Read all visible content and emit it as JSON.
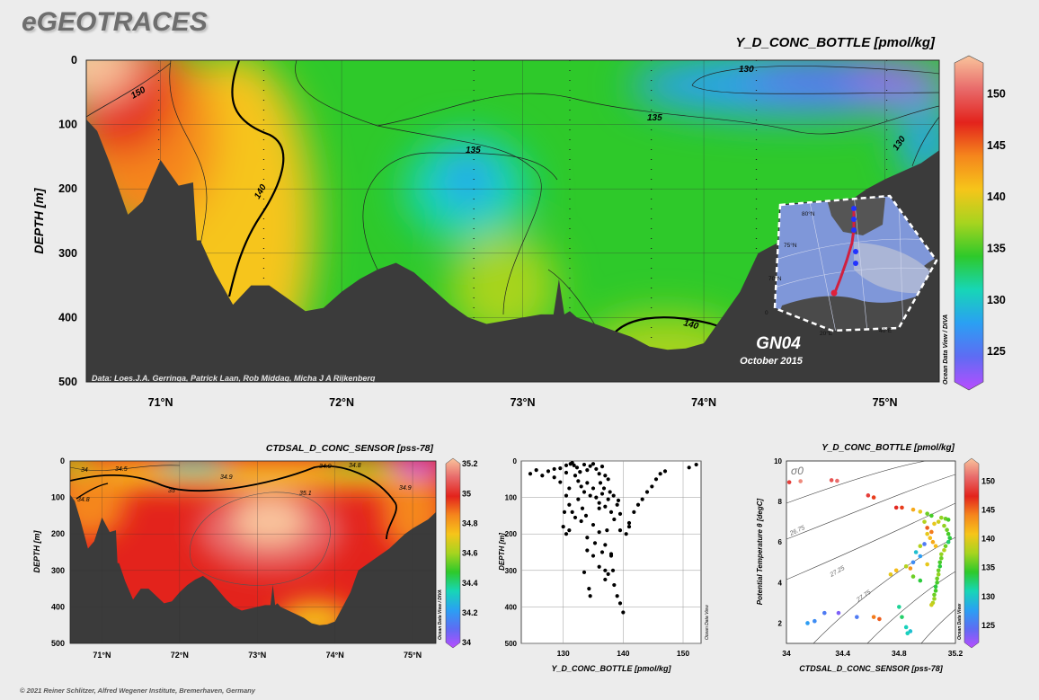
{
  "header": {
    "logo": "eGEOTRACES",
    "copyright": "© 2021 Reiner Schlitzer, Alfred Wegener Institute, Bremerhaven, Germany"
  },
  "colors": {
    "seafloor": "#3b3b3b",
    "panel_bg": "#ececec",
    "colormap": [
      "#b84dff",
      "#5e6cf3",
      "#2aa0f3",
      "#17d6b6",
      "#2ec92a",
      "#a7d41f",
      "#f6c51a",
      "#f5861c",
      "#e3231c",
      "#e86a6a",
      "#f9c49c"
    ]
  },
  "chart_data": [
    {
      "type": "heatmap",
      "title": "Y_D_CONC_BOTTLE [pmol/kg]",
      "ylabel": "DEPTH [m]",
      "xlabel": "",
      "x_ticks": [
        "71°N",
        "72°N",
        "73°N",
        "74°N",
        "75°N"
      ],
      "x_tick_values": [
        71,
        72,
        73,
        74,
        75
      ],
      "xlim": [
        70.59,
        75.3
      ],
      "y_ticks": [
        "0",
        "100",
        "200",
        "300",
        "400",
        "500"
      ],
      "ylim": [
        0,
        500
      ],
      "y_inverted": true,
      "colorbar": {
        "ticks": [
          "125",
          "130",
          "135",
          "140",
          "145",
          "150"
        ],
        "min": 122,
        "max": 153,
        "label": "Ocean Data View / DIVA"
      },
      "contour_labels": [
        "150",
        "140",
        "135",
        "135",
        "130",
        "130",
        "140"
      ],
      "annotations": {
        "data_credit": "Data: Loes.J.A. Gerringa, Patrick Laan, Rob Middag, Micha J A Rijkenberg",
        "section_name": "GN04",
        "section_date": "October 2015"
      },
      "inset_map": {
        "lon_labels": [
          "0",
          "20°E",
          "40°E"
        ],
        "lat_labels": [
          "80°N",
          "75°N",
          "70°N"
        ]
      },
      "station_latitudes": [
        70.99,
        71.57,
        72.73,
        73.26,
        73.71,
        74.29,
        75.01
      ],
      "bottom_depth_profile": {
        "lat": [
          70.59,
          70.65,
          70.72,
          70.82,
          70.9,
          71.0,
          71.1,
          71.18,
          71.2,
          71.22,
          71.3,
          71.4,
          71.5,
          71.6,
          71.7,
          71.8,
          71.9,
          72.0,
          72.1,
          72.2,
          72.3,
          72.4,
          72.5,
          72.6,
          72.7,
          72.8,
          72.9,
          73.0,
          73.1,
          73.17,
          73.2,
          73.23,
          73.26,
          73.3,
          73.4,
          73.5,
          73.6,
          73.7,
          73.8,
          73.9,
          74.0,
          74.1,
          74.2,
          74.3,
          74.5,
          74.7,
          74.9,
          75.0,
          75.2,
          75.3
        ],
        "depth": [
          92,
          110,
          160,
          240,
          220,
          155,
          195,
          190,
          280,
          280,
          330,
          380,
          350,
          350,
          370,
          390,
          385,
          360,
          340,
          325,
          315,
          330,
          355,
          380,
          400,
          410,
          405,
          400,
          395,
          395,
          340,
          395,
          390,
          400,
          410,
          420,
          430,
          445,
          450,
          448,
          440,
          400,
          360,
          300,
          270,
          240,
          200,
          185,
          160,
          140
        ]
      }
    },
    {
      "type": "heatmap",
      "title": "CTDSAL_D_CONC_SENSOR [pss-78]",
      "ylabel": "DEPTH [m]",
      "xlabel": "",
      "x_ticks": [
        "71°N",
        "72°N",
        "73°N",
        "74°N",
        "75°N"
      ],
      "x_tick_values": [
        71,
        72,
        73,
        74,
        75
      ],
      "xlim": [
        70.59,
        75.3
      ],
      "y_ticks": [
        "0",
        "100",
        "200",
        "300",
        "400",
        "500"
      ],
      "ylim": [
        0,
        500
      ],
      "y_inverted": true,
      "colorbar": {
        "ticks": [
          "34",
          "34.2",
          "34.4",
          "34.6",
          "34.8",
          "35",
          "35.2"
        ],
        "min": 34.0,
        "max": 35.2,
        "label": "Ocean Data View / DIVA"
      },
      "contour_labels": [
        "34",
        "34.5",
        "34.8",
        "34.9",
        "35",
        "35.1",
        "34.9",
        "34.8",
        "34.9"
      ]
    },
    {
      "type": "scatter",
      "title": "",
      "xlabel": "Y_D_CONC_BOTTLE [pmol/kg]",
      "ylabel": "DEPTH [m]",
      "xlim": [
        123,
        153
      ],
      "ylim": [
        0,
        500
      ],
      "y_inverted": true,
      "x_ticks": [
        "130",
        "140",
        "150"
      ],
      "y_ticks": [
        "0",
        "100",
        "200",
        "300",
        "400",
        "500"
      ],
      "grid": true,
      "watermark": "Ocean Data View",
      "points": [
        [
          124.5,
          35
        ],
        [
          125.5,
          25
        ],
        [
          126.5,
          40
        ],
        [
          127.5,
          28
        ],
        [
          128.5,
          45
        ],
        [
          128.5,
          22
        ],
        [
          129.5,
          20
        ],
        [
          130.5,
          32
        ],
        [
          131.2,
          8
        ],
        [
          131.8,
          12
        ],
        [
          132.3,
          18
        ],
        [
          132.8,
          30
        ],
        [
          133.5,
          10
        ],
        [
          134,
          25
        ],
        [
          134.5,
          14
        ],
        [
          135,
          8
        ],
        [
          135.5,
          22
        ],
        [
          136,
          35
        ],
        [
          136.5,
          15
        ],
        [
          137,
          40
        ],
        [
          137.5,
          50
        ],
        [
          132,
          40
        ],
        [
          132.5,
          55
        ],
        [
          133,
          70
        ],
        [
          133.5,
          85
        ],
        [
          134,
          60
        ],
        [
          134.5,
          95
        ],
        [
          135,
          75
        ],
        [
          135.5,
          100
        ],
        [
          136,
          115
        ],
        [
          136.5,
          90
        ],
        [
          137,
          125
        ],
        [
          137.5,
          105
        ],
        [
          138,
          140
        ],
        [
          138.5,
          160
        ],
        [
          139,
          120
        ],
        [
          139.5,
          145
        ],
        [
          130.5,
          95
        ],
        [
          131,
          120
        ],
        [
          131.5,
          140
        ],
        [
          130,
          180
        ],
        [
          131,
          190
        ],
        [
          132,
          155
        ],
        [
          133,
          165
        ],
        [
          134,
          210
        ],
        [
          135,
          175
        ],
        [
          136,
          195
        ],
        [
          137,
          230
        ],
        [
          138,
          260
        ],
        [
          139.5,
          190
        ],
        [
          141,
          170
        ],
        [
          141.8,
          140
        ],
        [
          142.5,
          120
        ],
        [
          143.2,
          105
        ],
        [
          144,
          85
        ],
        [
          144.8,
          70
        ],
        [
          145.5,
          50
        ],
        [
          146.2,
          35
        ],
        [
          147,
          28
        ],
        [
          151,
          18
        ],
        [
          152.2,
          10
        ],
        [
          134,
          245
        ],
        [
          135,
          260
        ],
        [
          136,
          290
        ],
        [
          137,
          300
        ],
        [
          137.5,
          310
        ],
        [
          138,
          255
        ],
        [
          138.5,
          340
        ],
        [
          139,
          370
        ],
        [
          139.5,
          390
        ],
        [
          140,
          415
        ],
        [
          133.5,
          305
        ],
        [
          134.3,
          350
        ],
        [
          134.5,
          370
        ],
        [
          136.5,
          250
        ],
        [
          137,
          325
        ],
        [
          138.3,
          300
        ],
        [
          140.5,
          200
        ],
        [
          141,
          180
        ],
        [
          129.5,
          58
        ],
        [
          130.2,
          140
        ],
        [
          130.5,
          200
        ],
        [
          131,
          75
        ],
        [
          132.5,
          105
        ],
        [
          133.2,
          130
        ],
        [
          133.8,
          150
        ],
        [
          136.2,
          60
        ],
        [
          136.8,
          75
        ],
        [
          137.8,
          85
        ],
        [
          138.4,
          95
        ],
        [
          139.2,
          108
        ],
        [
          136,
          130
        ],
        [
          137.3,
          190
        ],
        [
          135.3,
          225
        ],
        [
          132.8,
          30
        ],
        [
          131.5,
          5
        ],
        [
          130.5,
          12
        ]
      ]
    },
    {
      "type": "scatter",
      "title": "Y_D_CONC_BOTTLE [pmol/kg]",
      "xlabel": "CTDSAL_D_CONC_SENSOR [pss-78]",
      "ylabel": "Potential Temperature θ [degC]",
      "xlim": [
        34.0,
        35.2
      ],
      "ylim": [
        1,
        10
      ],
      "x_ticks": [
        "34",
        "34.4",
        "34.8",
        "35.2"
      ],
      "x_tick_values": [
        34.0,
        34.4,
        34.8,
        35.2
      ],
      "y_ticks": [
        "2",
        "4",
        "6",
        "8",
        "10"
      ],
      "y_tick_values": [
        2,
        4,
        6,
        8,
        10
      ],
      "isopycnal_symbol": "σ0",
      "isopycnal_labels": [
        "26.75",
        "27.25",
        "27.75"
      ],
      "colorbar": {
        "ticks": [
          "125",
          "130",
          "135",
          "140",
          "145",
          "150"
        ],
        "min": 122,
        "max": 153,
        "label": "Ocean Data View"
      },
      "points": [
        [
          34.02,
          8.95,
          148
        ],
        [
          34.1,
          9.0,
          151
        ],
        [
          34.32,
          9.05,
          149
        ],
        [
          34.36,
          9.02,
          150
        ],
        [
          34.58,
          8.3,
          148
        ],
        [
          34.62,
          8.2,
          146
        ],
        [
          34.78,
          7.7,
          147
        ],
        [
          34.82,
          7.7,
          146
        ],
        [
          34.9,
          7.6,
          142
        ],
        [
          34.95,
          7.5,
          140
        ],
        [
          35.0,
          7.4,
          136
        ],
        [
          35.03,
          7.3,
          135
        ],
        [
          35.1,
          7.2,
          137
        ],
        [
          35.13,
          7.15,
          136
        ],
        [
          35.15,
          7.1,
          135
        ],
        [
          34.98,
          7.0,
          138
        ],
        [
          35.05,
          6.9,
          140
        ],
        [
          35.12,
          6.8,
          137
        ],
        [
          35.14,
          6.6,
          136
        ],
        [
          35.15,
          6.4,
          135
        ],
        [
          35.16,
          6.2,
          134
        ],
        [
          35.15,
          6.0,
          133
        ],
        [
          35.13,
          5.8,
          136
        ],
        [
          35.12,
          5.6,
          138
        ],
        [
          35.1,
          5.4,
          137
        ],
        [
          35.1,
          5.2,
          136
        ],
        [
          35.09,
          5.0,
          135
        ],
        [
          35.09,
          4.8,
          134
        ],
        [
          35.08,
          4.6,
          136
        ],
        [
          35.08,
          4.4,
          137
        ],
        [
          35.07,
          4.2,
          136
        ],
        [
          35.07,
          4.0,
          135
        ],
        [
          35.06,
          3.8,
          134
        ],
        [
          35.06,
          3.6,
          135
        ],
        [
          35.05,
          3.4,
          136
        ],
        [
          35.05,
          3.2,
          137
        ],
        [
          35.04,
          3.0,
          138
        ],
        [
          35.03,
          2.9,
          139
        ],
        [
          35.0,
          6.4,
          140
        ],
        [
          35.02,
          6.2,
          141
        ],
        [
          35.04,
          6.0,
          142
        ],
        [
          35.06,
          5.8,
          141
        ],
        [
          34.95,
          5.8,
          138
        ],
        [
          34.92,
          5.5,
          130
        ],
        [
          34.95,
          5.3,
          128
        ],
        [
          34.98,
          5.9,
          126
        ],
        [
          34.9,
          5.0,
          127
        ],
        [
          35.0,
          4.9,
          140
        ],
        [
          34.9,
          4.3,
          136
        ],
        [
          34.95,
          4.1,
          134
        ],
        [
          34.8,
          2.8,
          132
        ],
        [
          34.82,
          2.3,
          133
        ],
        [
          34.85,
          1.8,
          131
        ],
        [
          34.88,
          1.6,
          130
        ],
        [
          34.86,
          1.5,
          131
        ],
        [
          34.15,
          2.0,
          128
        ],
        [
          34.2,
          2.1,
          127
        ],
        [
          34.27,
          2.5,
          126
        ],
        [
          34.37,
          2.5,
          124
        ],
        [
          34.5,
          2.3,
          126
        ],
        [
          34.66,
          2.2,
          145
        ],
        [
          34.62,
          2.3,
          144
        ],
        [
          35.0,
          6.7,
          145
        ],
        [
          35.03,
          6.5,
          144
        ],
        [
          35.08,
          7.0,
          139
        ],
        [
          34.85,
          4.8,
          138
        ],
        [
          34.74,
          4.4,
          140
        ],
        [
          34.78,
          4.6,
          141
        ],
        [
          34.88,
          4.7,
          143
        ]
      ]
    }
  ]
}
